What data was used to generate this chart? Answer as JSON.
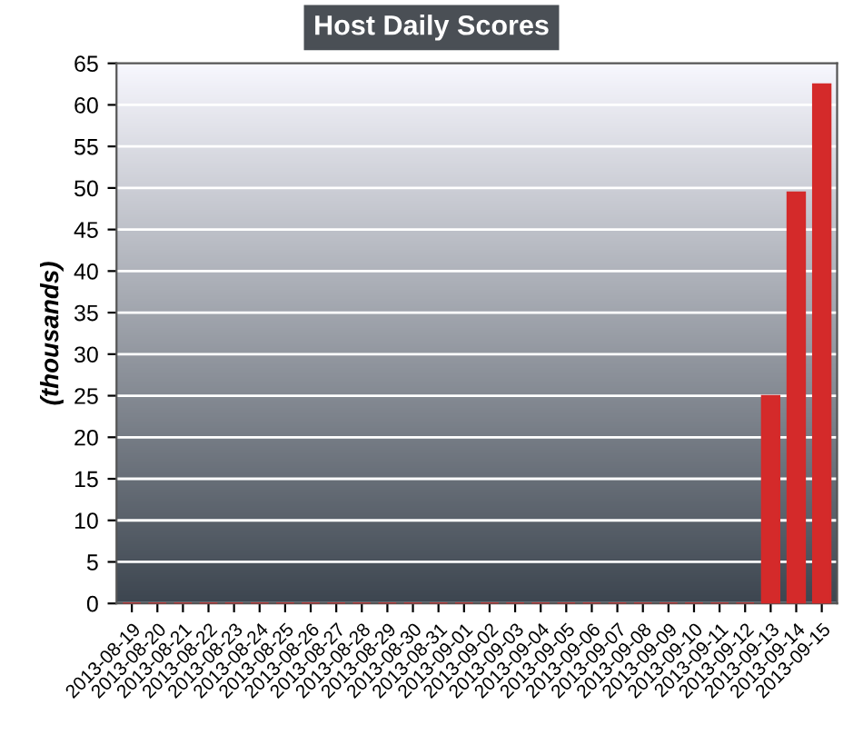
{
  "chart_data": {
    "type": "bar",
    "title": "Host Daily Scores",
    "ylabel": "(thousands)",
    "categories": [
      "2013-08-19",
      "2013-08-20",
      "2013-08-21",
      "2013-08-22",
      "2013-08-23",
      "2013-08-24",
      "2013-08-25",
      "2013-08-26",
      "2013-08-27",
      "2013-08-28",
      "2013-08-29",
      "2013-08-30",
      "2013-08-31",
      "2013-09-01",
      "2013-09-02",
      "2013-09-03",
      "2013-09-04",
      "2013-09-05",
      "2013-09-06",
      "2013-09-07",
      "2013-09-08",
      "2013-09-09",
      "2013-09-10",
      "2013-09-11",
      "2013-09-12",
      "2013-09-13",
      "2013-09-14",
      "2013-09-15"
    ],
    "values": [
      0,
      0,
      0,
      0,
      0,
      0,
      0,
      0,
      0,
      0,
      0,
      0,
      0,
      0,
      0,
      0,
      0,
      0,
      0,
      0,
      0,
      0,
      0,
      0,
      0,
      25,
      49.5,
      62.5
    ],
    "color": "#d42a2a",
    "ylim": [
      0,
      65
    ],
    "yticks": [
      0,
      5,
      10,
      15,
      20,
      25,
      30,
      35,
      40,
      45,
      50,
      55,
      60,
      65
    ],
    "grid": "y"
  }
}
